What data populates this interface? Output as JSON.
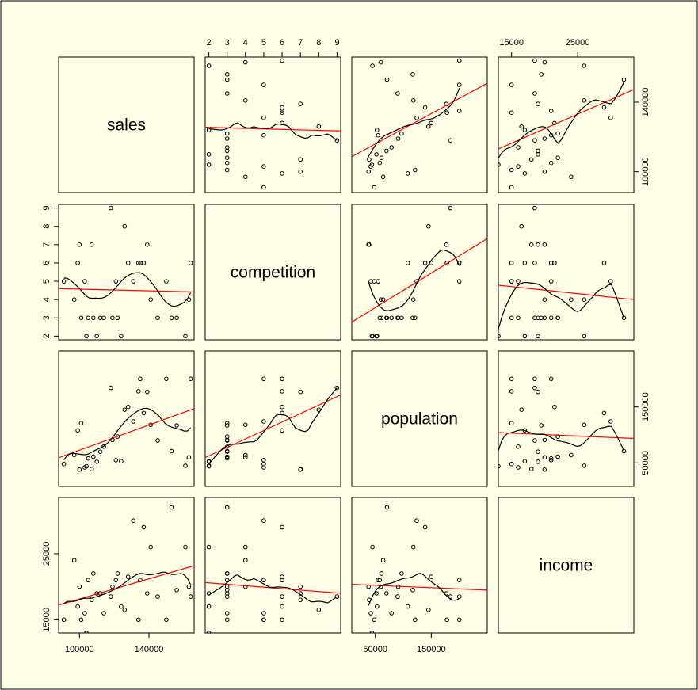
{
  "colors": {
    "background": "#fefee6",
    "frame": "#000000",
    "points": "#000000",
    "regression_line": "#ff0000",
    "smooth_line": "#000000"
  },
  "chart_data": {
    "type": "scatter",
    "layout": "scatterplot-matrix",
    "grid": false,
    "variables": [
      "sales",
      "competition",
      "population",
      "income"
    ],
    "ticks": {
      "sales": [
        "100000",
        "140000"
      ],
      "competition": [
        "2",
        "3",
        "4",
        "5",
        "6",
        "7",
        "8",
        "9"
      ],
      "population": [
        "50000",
        "150000"
      ],
      "income": [
        "15000",
        "25000"
      ]
    },
    "ranges": {
      "sales": [
        88000,
        166000
      ],
      "competition": [
        1.8,
        9.2
      ],
      "population": [
        8000,
        250000
      ],
      "income": [
        13000,
        33500
      ]
    },
    "observations": {
      "sales": [
        91000,
        97000,
        99000,
        100000,
        101000,
        103000,
        104000,
        105000,
        107000,
        108000,
        110000,
        112000,
        114000,
        118000,
        119000,
        121000,
        122000,
        124000,
        126000,
        128000,
        131000,
        134000,
        135000,
        137000,
        139000,
        141000,
        145000,
        150000,
        153000,
        156000,
        161000,
        163000,
        164000
      ],
      "competition": [
        5,
        4,
        6,
        7,
        3,
        5,
        2,
        3,
        7,
        3,
        2,
        3,
        3,
        9,
        3,
        5,
        3,
        2,
        8,
        6,
        5,
        6,
        6,
        6,
        7,
        4,
        3,
        5,
        3,
        3,
        2,
        4,
        6
      ],
      "population": [
        48000,
        64000,
        108000,
        38000,
        121000,
        42000,
        44000,
        58000,
        39000,
        61000,
        52000,
        70000,
        79000,
        184000,
        91000,
        55000,
        97000,
        53000,
        145000,
        150000,
        124000,
        178000,
        200000,
        139000,
        177000,
        118000,
        90000,
        200000,
        71000,
        117000,
        45000,
        60000,
        200000
      ],
      "income": [
        15000,
        24000,
        17000,
        20000,
        15000,
        16000,
        13000,
        21000,
        18000,
        22000,
        19000,
        19000,
        16000,
        18500,
        20000,
        21000,
        22000,
        17000,
        16500,
        21500,
        30000,
        15000,
        21000,
        29000,
        19000,
        26000,
        18500,
        15000,
        32000,
        19500,
        26000,
        20000,
        18500
      ]
    },
    "series": [
      {
        "kind": "points"
      },
      {
        "kind": "linear-regression"
      },
      {
        "kind": "lowess-smooth"
      }
    ]
  }
}
